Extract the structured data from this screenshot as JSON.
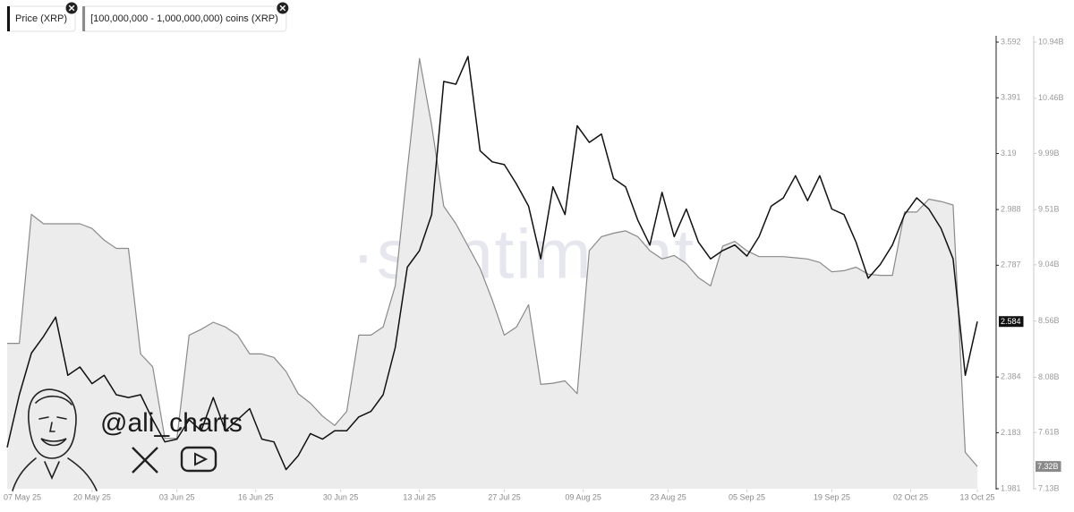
{
  "chart_data": {
    "type": "line",
    "watermark": "·santiment",
    "branding": "@ali_charts",
    "x": [
      "2025-05-06",
      "2025-05-08",
      "2025-05-10",
      "2025-05-12",
      "2025-05-14",
      "2025-05-16",
      "2025-05-18",
      "2025-05-20",
      "2025-05-22",
      "2025-05-24",
      "2025-05-26",
      "2025-05-28",
      "2025-05-30",
      "2025-06-01",
      "2025-06-03",
      "2025-06-05",
      "2025-06-07",
      "2025-06-09",
      "2025-06-11",
      "2025-06-13",
      "2025-06-15",
      "2025-06-17",
      "2025-06-19",
      "2025-06-21",
      "2025-06-23",
      "2025-06-25",
      "2025-06-27",
      "2025-06-29",
      "2025-07-01",
      "2025-07-03",
      "2025-07-05",
      "2025-07-07",
      "2025-07-09",
      "2025-07-11",
      "2025-07-13",
      "2025-07-15",
      "2025-07-17",
      "2025-07-19",
      "2025-07-21",
      "2025-07-23",
      "2025-07-25",
      "2025-07-27",
      "2025-07-29",
      "2025-07-31",
      "2025-08-02",
      "2025-08-04",
      "2025-08-06",
      "2025-08-08",
      "2025-08-10",
      "2025-08-12",
      "2025-08-14",
      "2025-08-16",
      "2025-08-18",
      "2025-08-20",
      "2025-08-22",
      "2025-08-24",
      "2025-08-26",
      "2025-08-28",
      "2025-08-30",
      "2025-09-01",
      "2025-09-03",
      "2025-09-05",
      "2025-09-07",
      "2025-09-09",
      "2025-09-11",
      "2025-09-13",
      "2025-09-15",
      "2025-09-17",
      "2025-09-19",
      "2025-09-21",
      "2025-09-23",
      "2025-09-25",
      "2025-09-27",
      "2025-09-29",
      "2025-10-01",
      "2025-10-03",
      "2025-10-05",
      "2025-10-07",
      "2025-10-09",
      "2025-10-11",
      "2025-10-13"
    ],
    "xlim": [
      "2025-05-06",
      "2025-10-13"
    ],
    "xticks": [
      {
        "value": "2025-05-07",
        "label": "07 May 25"
      },
      {
        "value": "2025-05-20",
        "label": "20 May 25"
      },
      {
        "value": "2025-06-03",
        "label": "03 Jun 25"
      },
      {
        "value": "2025-06-16",
        "label": "16 Jun 25"
      },
      {
        "value": "2025-06-30",
        "label": "30 Jun 25"
      },
      {
        "value": "2025-07-13",
        "label": "13 Jul 25"
      },
      {
        "value": "2025-07-27",
        "label": "27 Jul 25"
      },
      {
        "value": "2025-08-09",
        "label": "09 Aug 25"
      },
      {
        "value": "2025-08-23",
        "label": "23 Aug 25"
      },
      {
        "value": "2025-09-05",
        "label": "05 Sep 25"
      },
      {
        "value": "2025-09-19",
        "label": "19 Sep 25"
      },
      {
        "value": "2025-10-02",
        "label": "02 Oct 25"
      },
      {
        "value": "2025-10-13",
        "label": "13 Oct 25"
      }
    ],
    "ylim": [
      1.981,
      3.592
    ],
    "yticks": [
      1.981,
      2.183,
      2.384,
      2.787,
      2.988,
      3.19,
      3.391,
      3.592
    ],
    "y2lim": [
      7.13,
      10.94
    ],
    "y2ticks": [
      {
        "value": 7.13,
        "label": "7.13B"
      },
      {
        "value": 7.61,
        "label": "7.61B"
      },
      {
        "value": 8.08,
        "label": "8.08B"
      },
      {
        "value": 8.56,
        "label": "8.56B"
      },
      {
        "value": 9.04,
        "label": "9.04B"
      },
      {
        "value": 9.51,
        "label": "9.51B"
      },
      {
        "value": 9.99,
        "label": "9.99B"
      },
      {
        "value": 10.46,
        "label": "10.46B"
      },
      {
        "value": 10.94,
        "label": "10.94B"
      }
    ],
    "grid": false,
    "series": [
      {
        "name": "[100,000,000 - 1,000,000,000) coins (XRP)",
        "color": "#8a8a8a",
        "fill": "#ececec",
        "area": true,
        "axis": "y2",
        "current_value": {
          "value": 7.32,
          "label": "7.32B"
        },
        "values": [
          8.37,
          8.37,
          9.47,
          9.39,
          9.39,
          9.39,
          9.39,
          9.35,
          9.25,
          9.18,
          9.18,
          8.28,
          8.17,
          7.56,
          7.56,
          8.44,
          8.49,
          8.55,
          8.51,
          8.44,
          8.28,
          8.28,
          8.25,
          8.13,
          7.94,
          7.86,
          7.75,
          7.67,
          7.79,
          8.44,
          8.44,
          8.51,
          8.86,
          9.85,
          10.8,
          10.23,
          9.54,
          9.39,
          9.2,
          9.01,
          8.74,
          8.44,
          8.51,
          8.7,
          8.02,
          8.03,
          8.05,
          7.94,
          9.16,
          9.28,
          9.31,
          9.33,
          9.28,
          9.16,
          9.09,
          9.12,
          9.05,
          8.93,
          8.86,
          9.2,
          9.24,
          9.16,
          9.11,
          9.11,
          9.11,
          9.1,
          9.09,
          9.06,
          8.98,
          8.99,
          9.02,
          8.96,
          8.95,
          8.95,
          9.49,
          9.49,
          9.6,
          9.58,
          9.55,
          7.44,
          7.32
        ]
      },
      {
        "name": "Price (XRP)",
        "color": "#111111",
        "area": false,
        "current_value": 2.584,
        "values": [
          2.13,
          2.32,
          2.47,
          2.53,
          2.6,
          2.39,
          2.42,
          2.36,
          2.39,
          2.32,
          2.31,
          2.32,
          2.23,
          2.15,
          2.16,
          2.23,
          2.19,
          2.31,
          2.19,
          2.23,
          2.27,
          2.16,
          2.15,
          2.05,
          2.1,
          2.18,
          2.16,
          2.19,
          2.19,
          2.24,
          2.26,
          2.32,
          2.49,
          2.78,
          2.84,
          2.97,
          3.45,
          3.44,
          3.54,
          3.2,
          3.16,
          3.15,
          3.08,
          3.0,
          2.81,
          3.07,
          2.97,
          3.29,
          3.23,
          3.26,
          3.1,
          3.07,
          2.95,
          2.86,
          3.05,
          2.89,
          2.99,
          2.87,
          2.81,
          2.84,
          2.86,
          2.82,
          2.89,
          3.0,
          3.03,
          3.11,
          3.02,
          3.11,
          2.99,
          2.97,
          2.87,
          2.74,
          2.79,
          2.86,
          2.97,
          3.03,
          2.99,
          2.92,
          2.81,
          2.39,
          2.584
        ]
      }
    ],
    "legend_order": [
      1,
      0
    ]
  }
}
